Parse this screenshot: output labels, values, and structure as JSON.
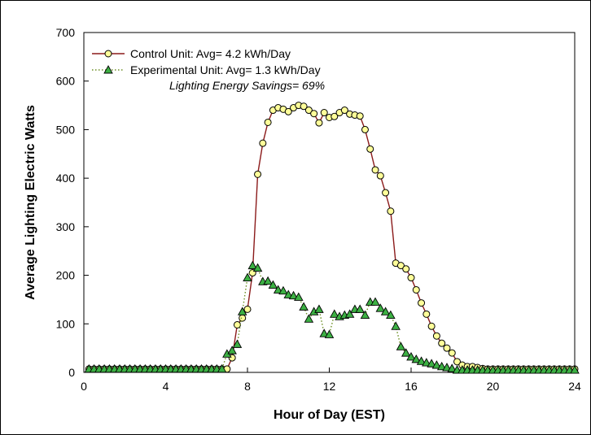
{
  "chart_data": {
    "type": "line",
    "xlabel": "Hour of Day (EST)",
    "ylabel": "Average Lighting Electric Watts",
    "xlim": [
      0,
      24
    ],
    "ylim": [
      0,
      700
    ],
    "xticks": [
      "0",
      "4",
      "8",
      "12",
      "16",
      "20",
      "24"
    ],
    "yticks": [
      "0",
      "100",
      "200",
      "300",
      "400",
      "500",
      "600",
      "700"
    ],
    "x_tick_values": [
      0,
      4,
      8,
      12,
      16,
      20,
      24
    ],
    "y_tick_values": [
      0,
      100,
      200,
      300,
      400,
      500,
      600,
      700
    ],
    "grid": false,
    "legend_position": "top-left",
    "annotation": "Lighting Energy Savings= 69%",
    "x": [
      0.25,
      0.5,
      0.75,
      1.0,
      1.25,
      1.5,
      1.75,
      2.0,
      2.25,
      2.5,
      2.75,
      3.0,
      3.25,
      3.5,
      3.75,
      4.0,
      4.25,
      4.5,
      4.75,
      5.0,
      5.25,
      5.5,
      5.75,
      6.0,
      6.25,
      6.5,
      6.75,
      7.0,
      7.25,
      7.5,
      7.75,
      8.0,
      8.25,
      8.5,
      8.75,
      9.0,
      9.25,
      9.5,
      9.75,
      10.0,
      10.25,
      10.5,
      10.75,
      11.0,
      11.25,
      11.5,
      11.75,
      12.0,
      12.25,
      12.5,
      12.75,
      13.0,
      13.25,
      13.5,
      13.75,
      14.0,
      14.25,
      14.5,
      14.75,
      15.0,
      15.25,
      15.5,
      15.75,
      16.0,
      16.25,
      16.5,
      16.75,
      17.0,
      17.25,
      17.5,
      17.75,
      18.0,
      18.25,
      18.5,
      18.75,
      19.0,
      19.25,
      19.5,
      19.75,
      20.0,
      20.25,
      20.5,
      20.75,
      21.0,
      21.25,
      21.5,
      21.75,
      22.0,
      22.25,
      22.5,
      22.75,
      23.0,
      23.25,
      23.5,
      23.75,
      24.0
    ],
    "series": [
      {
        "name": "Control Unit: Avg= 4.2 kWh/Day",
        "color": "#8b1a1a",
        "marker_fill": "#ffff99",
        "marker": "circle",
        "line_style": "solid",
        "values": [
          7,
          7,
          7,
          7,
          7,
          7,
          7,
          7,
          7,
          7,
          7,
          7,
          7,
          7,
          7,
          7,
          7,
          7,
          7,
          7,
          7,
          7,
          7,
          7,
          7,
          7,
          7,
          7,
          30,
          98,
          112,
          130,
          205,
          408,
          472,
          515,
          540,
          545,
          542,
          537,
          545,
          550,
          548,
          540,
          533,
          514,
          535,
          525,
          527,
          535,
          540,
          532,
          530,
          528,
          500,
          460,
          417,
          405,
          370,
          332,
          225,
          220,
          213,
          195,
          170,
          143,
          120,
          95,
          75,
          60,
          50,
          40,
          22,
          15,
          12,
          12,
          10,
          8,
          7,
          7,
          7,
          7,
          7,
          7,
          7,
          7,
          7,
          7,
          7,
          7,
          7,
          7,
          7,
          7,
          7,
          7
        ]
      },
      {
        "name": "Experimental Unit: Avg= 1.3 kWh/Day",
        "color": "#6b8e23",
        "marker_fill": "#3cb043",
        "marker": "triangle",
        "line_style": "dotted",
        "values": [
          7,
          7,
          7,
          7,
          7,
          7,
          7,
          7,
          7,
          7,
          7,
          7,
          7,
          7,
          7,
          7,
          7,
          7,
          7,
          7,
          7,
          7,
          7,
          7,
          7,
          7,
          7,
          38,
          45,
          58,
          125,
          195,
          220,
          215,
          187,
          188,
          180,
          170,
          168,
          160,
          158,
          155,
          135,
          110,
          125,
          130,
          80,
          78,
          120,
          115,
          118,
          120,
          130,
          130,
          118,
          145,
          145,
          132,
          125,
          118,
          95,
          53,
          40,
          32,
          27,
          23,
          20,
          18,
          15,
          12,
          10,
          8,
          5,
          5,
          5,
          5,
          5,
          5,
          5,
          5,
          5,
          5,
          5,
          5,
          5,
          5,
          5,
          5,
          5,
          5,
          5,
          5,
          5,
          5,
          5,
          5
        ]
      }
    ]
  }
}
